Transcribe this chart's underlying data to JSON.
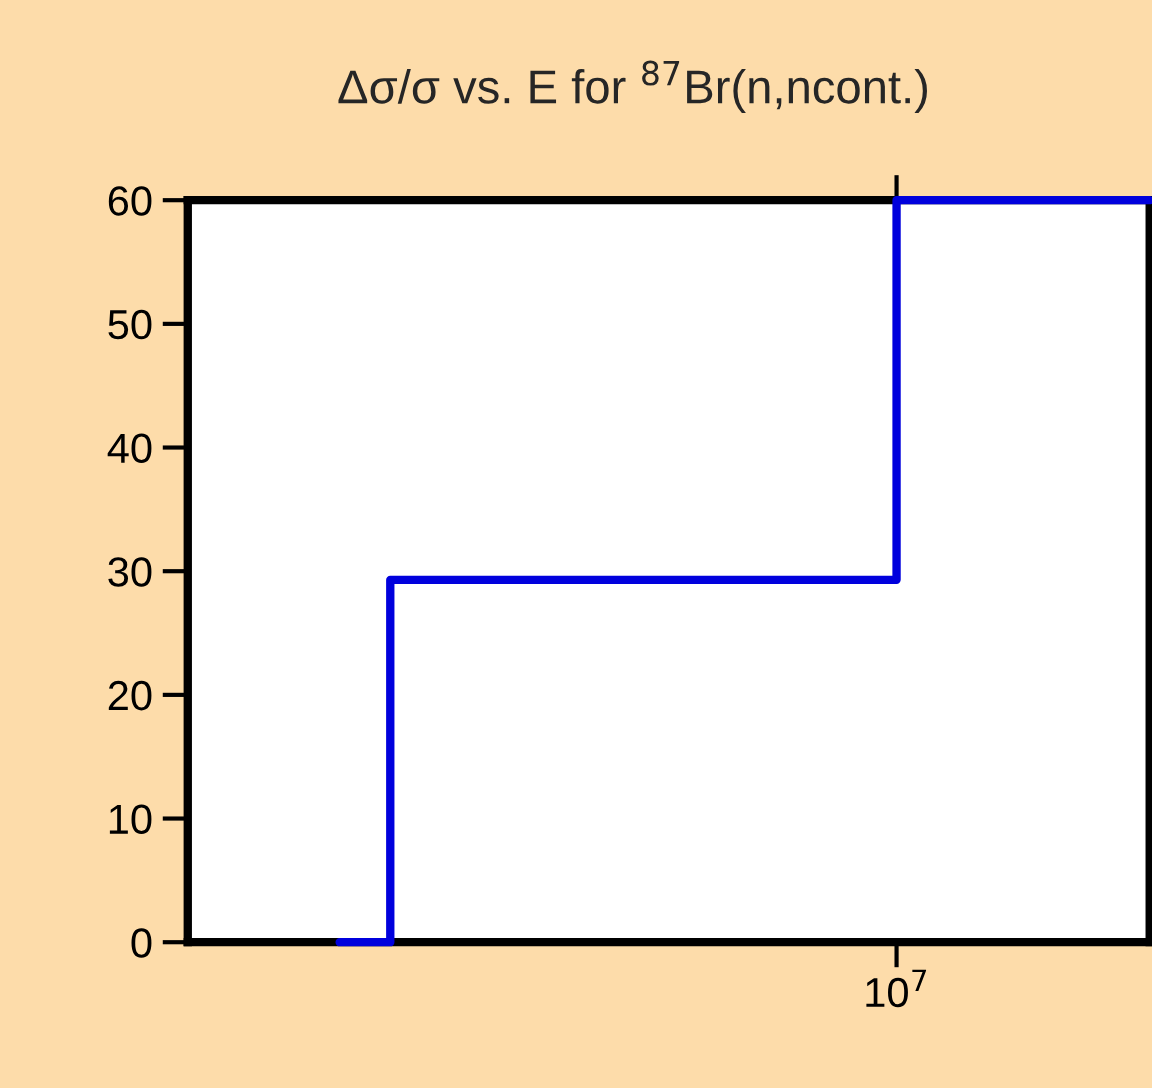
{
  "chart_data": {
    "type": "step",
    "title": "Δσ/σ vs. E for $^{87}$Br(n,ncont.)",
    "categories": [
      null,
      null,
      null,
      null,
      null,
      null,
      null,
      null,
      null,
      null,
      null,
      null,
      null,
      null,
      "10$^{7}$",
      null,
      null,
      null,
      null,
      null
    ],
    "series": [
      {
        "color": "#0000dd",
        "values": [
          null,
          null,
          null,
          0,
          29.3,
          29.3,
          29.3,
          29.3,
          29.3,
          29.3,
          29.3,
          29.3,
          29.3,
          29.3,
          60,
          60,
          60,
          60,
          60,
          60
        ]
      }
    ],
    "ylim": [
      0,
      60
    ],
    "yticks": [
      0,
      10,
      20,
      30,
      40,
      50,
      60
    ],
    "grid": false,
    "legend": false
  }
}
